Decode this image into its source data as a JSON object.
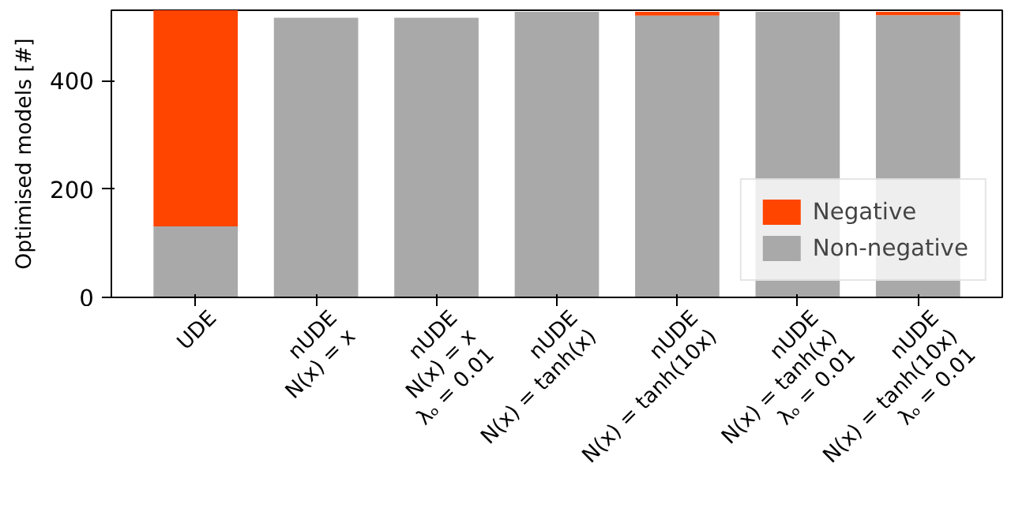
{
  "chart_data": {
    "type": "bar",
    "stacked": true,
    "ylabel": "Optimised models [#]",
    "categories": [
      "UDE",
      "nUDE\nN(x) = x",
      "nUDE\nN(x) = x\nλₒ = 0.01",
      "nUDE\nN(x) = tanh(x)",
      "nUDE\nN(x) = tanh(10x)",
      "nUDE\nN(x) = tanh(x)\nλₒ = 0.01",
      "nUDE\nN(x) = tanh(10x)\nλₒ = 0.01"
    ],
    "series": [
      {
        "name": "Non-negative",
        "color": "#a9a9a9",
        "values": [
          131,
          516,
          516,
          527,
          520,
          527,
          521
        ]
      },
      {
        "name": "Negative",
        "color": "#ff4500",
        "values": [
          399,
          0,
          0,
          0,
          7,
          0,
          6
        ]
      }
    ],
    "ylim": [
      0,
      530
    ],
    "yticks": [
      0,
      200,
      400
    ],
    "legend": "bottom right",
    "grid": false
  }
}
